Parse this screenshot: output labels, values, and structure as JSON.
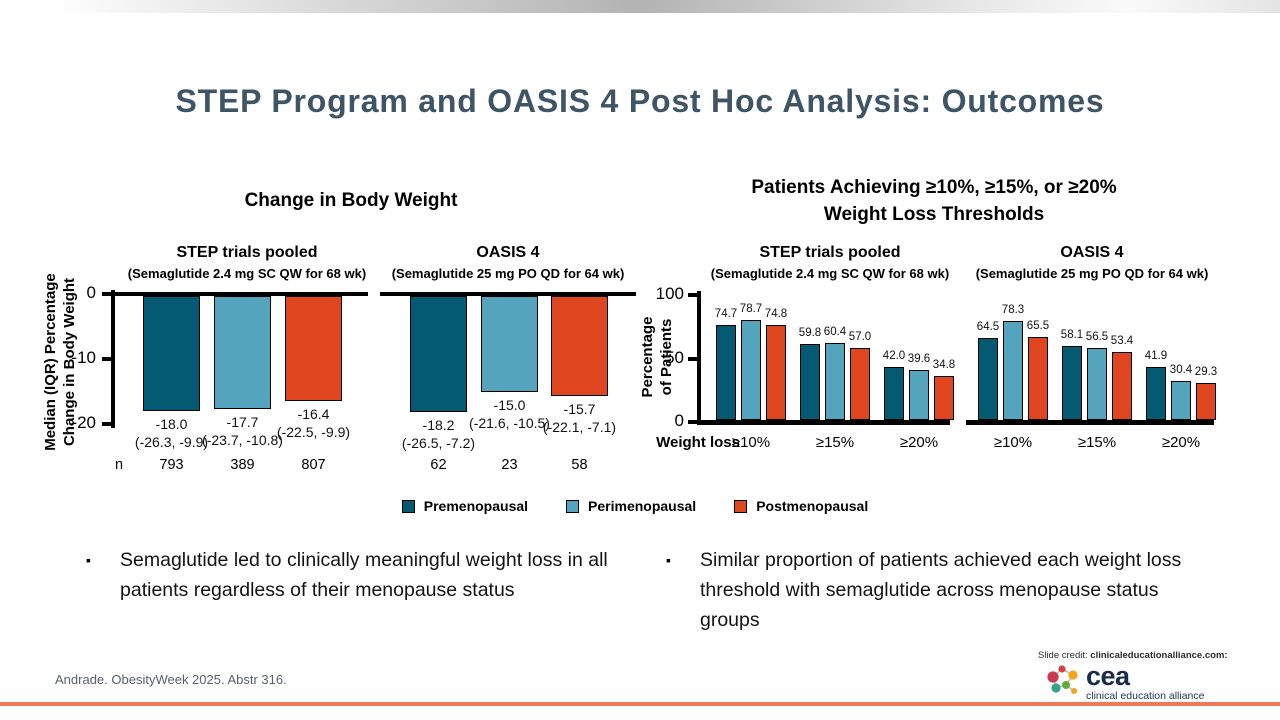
{
  "slide": {
    "title": "STEP Program and OASIS 4 Post Hoc Analysis: Outcomes",
    "bullet_marker": "▪",
    "bullets": [
      "Semaglutide led to clinically meaningful weight loss in all patients regardless of their menopause status",
      "Similar proportion of patients achieved each weight loss threshold with semaglutide across menopause status groups"
    ],
    "citation": "Andrade. ObesityWeek 2025. Abstr 316.",
    "credit": {
      "prefix": "Slide credit: ",
      "domain": "clinicaleducationalliance.com:"
    },
    "logo": {
      "wordmark": "cea",
      "tagline": "clinical education alliance"
    }
  },
  "colors": {
    "title": "#3e5565",
    "accent_line": "#ee7957",
    "premenopausal": "#045a72",
    "perimenopausal": "#54a4bd",
    "postmenopausal": "#df451f"
  },
  "legend": {
    "position": "bottom-center",
    "items": [
      {
        "label": "Premenopausal",
        "color": "#045a72"
      },
      {
        "label": "Perimenopausal",
        "color": "#54a4bd"
      },
      {
        "label": "Postmenopausal",
        "color": "#df451f"
      }
    ]
  },
  "chart_data": [
    {
      "type": "bar",
      "title": "Change in Body Weight",
      "ylabel": "Median (IQR) Percentage\nChange in Body Weight",
      "yticks": [
        0,
        -10,
        -20
      ],
      "ylim": [
        -20,
        0
      ],
      "grid": false,
      "n_label": "n",
      "series": [
        "Premenopausal",
        "Perimenopausal",
        "Postmenopausal"
      ],
      "series_colors": [
        "#045a72",
        "#54a4bd",
        "#df451f"
      ],
      "groups": [
        {
          "name": "STEP trials pooled",
          "subtitle": "(Semaglutide 2.4 mg SC QW for 68 wk)",
          "bars": [
            {
              "series": "Premenopausal",
              "value": -18.0,
              "iqr": "(-26.3, -9.9)",
              "n": "793"
            },
            {
              "series": "Perimenopausal",
              "value": -17.7,
              "iqr": "(-23.7, -10.8)",
              "n": "389"
            },
            {
              "series": "Postmenopausal",
              "value": -16.4,
              "iqr": "(-22.5, -9.9)",
              "n": "807"
            }
          ]
        },
        {
          "name": "OASIS 4",
          "subtitle": "(Semaglutide 25 mg PO QD for 64 wk)",
          "bars": [
            {
              "series": "Premenopausal",
              "value": -18.2,
              "iqr": "(-26.5, -7.2)",
              "n": "62"
            },
            {
              "series": "Perimenopausal",
              "value": -15.0,
              "iqr": "(-21.6, -10.5)",
              "n": "23"
            },
            {
              "series": "Postmenopausal",
              "value": -15.7,
              "iqr": "(-22.1, -7.1)",
              "n": "58"
            }
          ]
        }
      ]
    },
    {
      "type": "grouped-bar",
      "title": "Patients Achieving ≥10%, ≥15%, or ≥20%\nWeight Loss Thresholds",
      "ylabel": "Percentage\nof Patients",
      "yticks": [
        0,
        50,
        100
      ],
      "ylim": [
        0,
        100
      ],
      "grid": false,
      "xlabel_prefix": "Weight loss",
      "categories": [
        "≥10%",
        "≥15%",
        "≥20%"
      ],
      "series": [
        "Premenopausal",
        "Perimenopausal",
        "Postmenopausal"
      ],
      "series_colors": [
        "#045a72",
        "#54a4bd",
        "#df451f"
      ],
      "groups": [
        {
          "name": "STEP trials pooled",
          "subtitle": "(Semaglutide 2.4 mg SC QW for 68 wk)",
          "values": [
            [
              74.7,
              78.7,
              74.8
            ],
            [
              59.8,
              60.4,
              57.0
            ],
            [
              42.0,
              39.6,
              34.8
            ]
          ]
        },
        {
          "name": "OASIS 4",
          "subtitle": "(Semaglutide 25 mg PO QD for 64 wk)",
          "values": [
            [
              64.5,
              78.3,
              65.5
            ],
            [
              58.1,
              56.5,
              53.4
            ],
            [
              41.9,
              30.4,
              29.3
            ]
          ]
        }
      ]
    }
  ]
}
